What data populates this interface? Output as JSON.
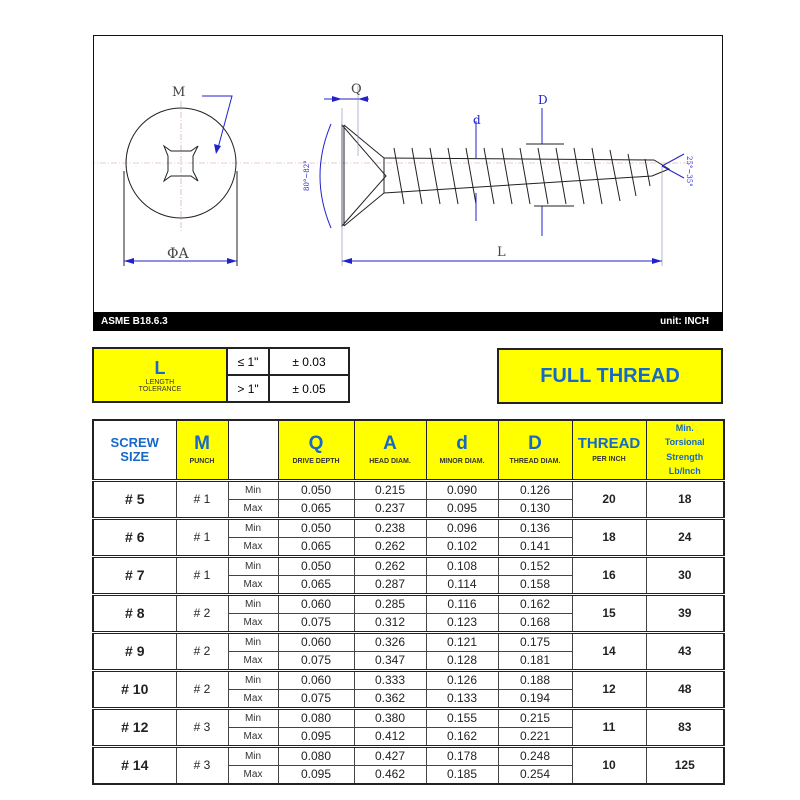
{
  "drawing": {
    "labels": {
      "M": "M",
      "Q": "Q",
      "D": "D",
      "d": "d",
      "A": "ΦA",
      "L": "L",
      "head_angle": "80°~82°",
      "tip_angle": "25°~35°"
    },
    "standard": "ASME B18.6.3",
    "unit": "unit: INCH"
  },
  "tolerance": {
    "symbol": "L",
    "label": "LENGTH TOLERANCE",
    "rows": [
      {
        "range": "≤ 1\"",
        "value": "± 0.03"
      },
      {
        "range": "> 1\"",
        "value": "± 0.05"
      }
    ]
  },
  "thread_type": "FULL THREAD",
  "table": {
    "headers": {
      "size": "SCREW SIZE",
      "m": {
        "symbol": "M",
        "sub": "PUNCH"
      },
      "q": {
        "symbol": "Q",
        "sub": "DRIVE DEPTH"
      },
      "a": {
        "symbol": "A",
        "sub": "HEAD DIAM."
      },
      "d": {
        "symbol": "d",
        "sub": "MINOR DIAM."
      },
      "D": {
        "symbol": "D",
        "sub": "THREAD DIAM."
      },
      "thread": {
        "symbol": "THREAD",
        "sub": "PER INCH"
      },
      "torsion": "Min. Torsional Strength Lb/Inch"
    },
    "min_label": "Min",
    "max_label": "Max",
    "rows": [
      {
        "size": "# 5",
        "m": "# 1",
        "min": [
          "0.050",
          "0.215",
          "0.090",
          "0.126"
        ],
        "max": [
          "0.065",
          "0.237",
          "0.095",
          "0.130"
        ],
        "tpi": "20",
        "torsion": "18"
      },
      {
        "size": "# 6",
        "m": "# 1",
        "min": [
          "0.050",
          "0.238",
          "0.096",
          "0.136"
        ],
        "max": [
          "0.065",
          "0.262",
          "0.102",
          "0.141"
        ],
        "tpi": "18",
        "torsion": "24"
      },
      {
        "size": "# 7",
        "m": "# 1",
        "min": [
          "0.050",
          "0.262",
          "0.108",
          "0.152"
        ],
        "max": [
          "0.065",
          "0.287",
          "0.114",
          "0.158"
        ],
        "tpi": "16",
        "torsion": "30"
      },
      {
        "size": "# 8",
        "m": "# 2",
        "min": [
          "0.060",
          "0.285",
          "0.116",
          "0.162"
        ],
        "max": [
          "0.075",
          "0.312",
          "0.123",
          "0.168"
        ],
        "tpi": "15",
        "torsion": "39"
      },
      {
        "size": "# 9",
        "m": "# 2",
        "min": [
          "0.060",
          "0.326",
          "0.121",
          "0.175"
        ],
        "max": [
          "0.075",
          "0.347",
          "0.128",
          "0.181"
        ],
        "tpi": "14",
        "torsion": "43"
      },
      {
        "size": "# 10",
        "m": "# 2",
        "min": [
          "0.060",
          "0.333",
          "0.126",
          "0.188"
        ],
        "max": [
          "0.075",
          "0.362",
          "0.133",
          "0.194"
        ],
        "tpi": "12",
        "torsion": "48"
      },
      {
        "size": "# 12",
        "m": "# 3",
        "min": [
          "0.080",
          "0.380",
          "0.155",
          "0.215"
        ],
        "max": [
          "0.095",
          "0.412",
          "0.162",
          "0.221"
        ],
        "tpi": "11",
        "torsion": "83"
      },
      {
        "size": "# 14",
        "m": "# 3",
        "min": [
          "0.080",
          "0.427",
          "0.178",
          "0.248"
        ],
        "max": [
          "0.095",
          "0.462",
          "0.185",
          "0.254"
        ],
        "tpi": "10",
        "torsion": "125"
      }
    ]
  }
}
